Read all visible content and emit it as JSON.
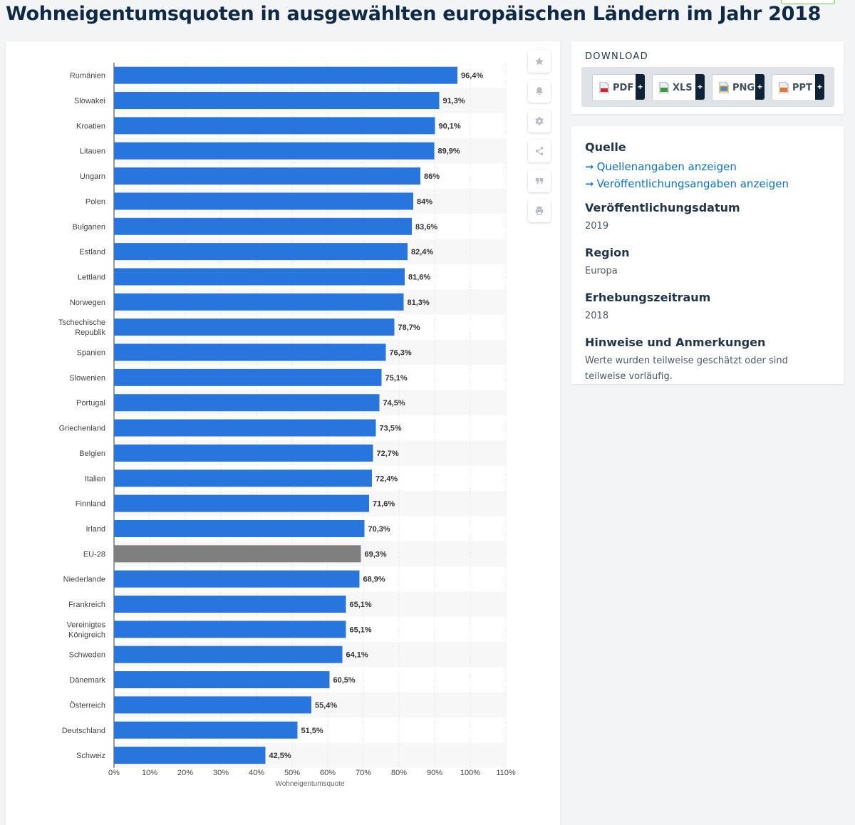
{
  "page": {
    "title": "Wohneigentumsquoten in ausgewählten europäischen Ländern im Jahr 2018"
  },
  "toolbar": {
    "icons": [
      "star-icon",
      "bell-icon",
      "gear-icon",
      "share-icon",
      "quote-icon",
      "print-icon"
    ]
  },
  "download": {
    "title": "DOWNLOAD",
    "buttons": [
      {
        "label": "PDF",
        "plus": "+",
        "color": "#d9202c"
      },
      {
        "label": "XLS",
        "plus": "+",
        "color": "#3d9a3b"
      },
      {
        "label": "PNG",
        "plus": "+",
        "color": "#e6a800"
      },
      {
        "label": "PPT",
        "plus": "+",
        "color": "#e8732a"
      }
    ]
  },
  "info": {
    "source_heading": "Quelle",
    "source_link": "Quellenangaben anzeigen",
    "publication_link": "Veröffentlichungsangaben anzeigen",
    "pubdate_heading": "Veröffentlichungsdatum",
    "pubdate_value": "2019",
    "region_heading": "Region",
    "region_value": "Europa",
    "period_heading": "Erhebungszeitraum",
    "period_value": "2018",
    "notes_heading": "Hinweise und Anmerkungen",
    "notes_value": "Werte wurden teilweise geschätzt oder sind teilweise vorläufig."
  },
  "chart_data": {
    "type": "bar",
    "orientation": "horizontal",
    "title": "",
    "xlabel": "Wohneigentumsquote",
    "ylabel": "",
    "xlim": [
      0,
      110
    ],
    "ticks": [
      0,
      10,
      20,
      30,
      40,
      50,
      60,
      70,
      80,
      90,
      100,
      110
    ],
    "tick_labels": [
      "0%",
      "10%",
      "20%",
      "30%",
      "40%",
      "50%",
      "60%",
      "70%",
      "80%",
      "90%",
      "100%",
      "110%"
    ],
    "bar_color": "#2876dd",
    "highlight_color": "#7f7f7f",
    "highlight_category": "EU-28",
    "categories": [
      "Rumänien",
      "Slowakei",
      "Kroatien",
      "Litauen",
      "Ungarn",
      "Polen",
      "Bulgarien",
      "Estland",
      "Lettland",
      "Norwegen",
      "Tschechische Republik",
      "Spanien",
      "Slowenien",
      "Portugal",
      "Griechenland",
      "Belgien",
      "Italien",
      "Finnland",
      "Irland",
      "EU-28",
      "Niederlande",
      "Frankreich",
      "Vereinigtes Königreich",
      "Schweden",
      "Dänemark",
      "Österreich",
      "Deutschland",
      "Schweiz"
    ],
    "values": [
      96.4,
      91.3,
      90.1,
      89.9,
      86,
      84,
      83.6,
      82.4,
      81.6,
      81.3,
      78.7,
      76.3,
      75.1,
      74.5,
      73.5,
      72.7,
      72.4,
      71.6,
      70.3,
      69.3,
      68.9,
      65.1,
      65.1,
      64.1,
      60.5,
      55.4,
      51.5,
      42.5
    ],
    "value_labels": [
      "96,4%",
      "91,3%",
      "90,1%",
      "89,9%",
      "86%",
      "84%",
      "83,6%",
      "82,4%",
      "81,6%",
      "81,3%",
      "78,7%",
      "76,3%",
      "75,1%",
      "74,5%",
      "73,5%",
      "72,7%",
      "72,4%",
      "71,6%",
      "70,3%",
      "69,3%",
      "68,9%",
      "65,1%",
      "65,1%",
      "64,1%",
      "60,5%",
      "55,4%",
      "51,5%",
      "42,5%"
    ]
  }
}
